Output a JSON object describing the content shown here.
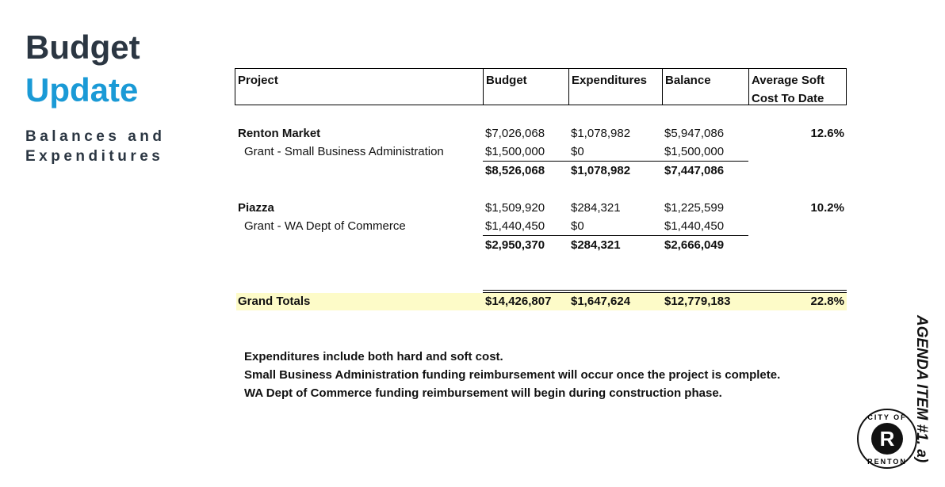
{
  "header": {
    "title_line1": "Budget",
    "title_line2": "Update",
    "subtitle_lines": [
      "Balances and",
      "Expenditures"
    ]
  },
  "table": {
    "columns": [
      "Project",
      "Budget",
      "Expenditures",
      "Balance",
      "Average Soft Cost To Date"
    ],
    "groups": [
      {
        "name": "Renton Market",
        "budget": "$7,026,068",
        "expenditures": "$1,078,982",
        "balance": "$5,947,086",
        "avg_soft_cost": "12.6%",
        "grant": {
          "name": "Grant - Small Business Administration",
          "budget": "$1,500,000",
          "expenditures": "$0",
          "balance": "$1,500,000"
        },
        "subtotal": {
          "budget": "$8,526,068",
          "expenditures": "$1,078,982",
          "balance": "$7,447,086"
        }
      },
      {
        "name": "Piazza",
        "budget": "$1,509,920",
        "expenditures": "$284,321",
        "balance": "$1,225,599",
        "avg_soft_cost": "10.2%",
        "grant": {
          "name": "Grant - WA Dept of Commerce",
          "budget": "$1,440,450",
          "expenditures": "$0",
          "balance": "$1,440,450"
        },
        "subtotal": {
          "budget": "$2,950,370",
          "expenditures": "$284,321",
          "balance": "$2,666,049"
        }
      }
    ],
    "grand_total": {
      "label": "Grand Totals",
      "budget": "$14,426,807",
      "expenditures": "$1,647,624",
      "balance": "$12,779,183",
      "avg_soft_cost": "22.8%"
    }
  },
  "notes": [
    "Expenditures include both hard and soft cost.",
    "Small Business Administration funding reimbursement will occur once the project is complete.",
    "WA Dept of Commerce funding reimbursement will begin during construction phase."
  ],
  "side_label": "AGENDA ITEM #1. a)",
  "logo": {
    "top": "CITY OF",
    "mark": "R",
    "bottom": "RENTON"
  }
}
